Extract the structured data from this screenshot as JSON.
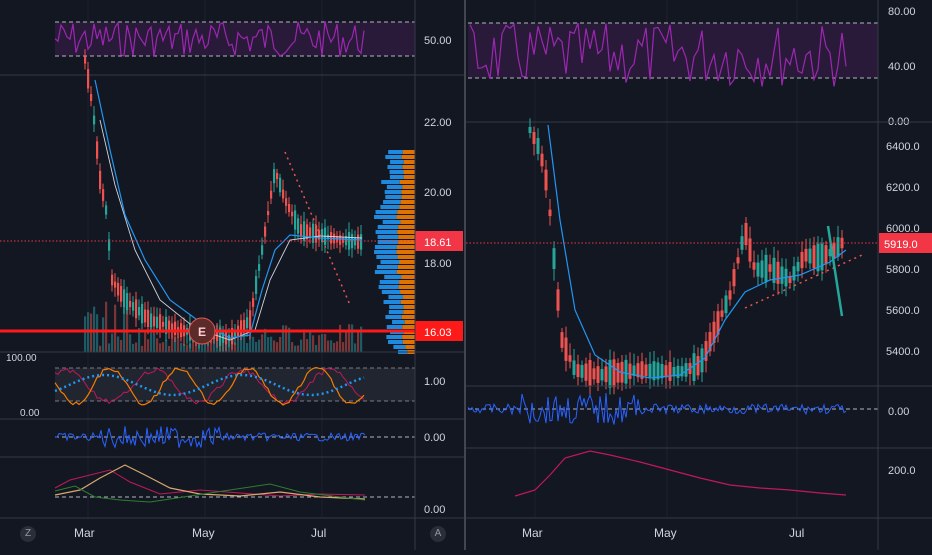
{
  "colors": {
    "background": "#131722",
    "grid": "#1e222d",
    "separator": "#363a45",
    "text": "#b2b5be",
    "candle_up": "#26a69a",
    "candle_down": "#ef5350",
    "ma_line": "#2196f3",
    "rsi_line": "#9c27b0",
    "rsi_band": "#2a1a3a",
    "price_line": "#f23645",
    "price_label": "#f23645",
    "support_label": "#ff1a1a",
    "teal_line": "#26a69a",
    "osc_orange": "#f57c00",
    "osc_dots": "#2196f3",
    "macd_line": "#2962ff",
    "dmi_red": "#c2185b",
    "dmi_tan": "#d7a86e",
    "dmi_green": "#1b5e20",
    "volume_up": "#1e5a63",
    "volume_down": "#7a3535",
    "vp_up": "#2196f3",
    "vp_down": "#f57c00"
  },
  "left_chart": {
    "rsi": {
      "axis_labels": [
        "50.00"
      ],
      "upper_band": 70,
      "lower_band": 30
    },
    "price_axis_labels": [
      "22.00",
      "20.00",
      "18.00"
    ],
    "last_price_label": "18.61",
    "support_label": "16.03",
    "earnings_marker": "E",
    "oscillator": {
      "axis_label_left_top": "100.00",
      "axis_label_left_bottom": "0.00",
      "axis_label_right": "1.00"
    },
    "macd": {
      "axis_label": "0.00"
    },
    "dmi": {
      "axis_label": "0.00"
    },
    "time_labels": [
      "Mar",
      "May",
      "Jul"
    ],
    "corner_button": "Z"
  },
  "right_chart": {
    "rsi": {
      "axis_labels": [
        "80.00",
        "40.00",
        "0.00"
      ],
      "upper_band": 70,
      "lower_band": 30
    },
    "price_axis_labels": [
      "6400.0",
      "6200.0",
      "6000.0",
      "5800.0",
      "5600.0",
      "5400.0"
    ],
    "last_price_label": "5919.0",
    "macd": {
      "axis_label": "0.00"
    },
    "dmi": {
      "axis_label": "200.0"
    },
    "time_labels": [
      "Mar",
      "May",
      "Jul"
    ],
    "corner_button": "A"
  }
}
